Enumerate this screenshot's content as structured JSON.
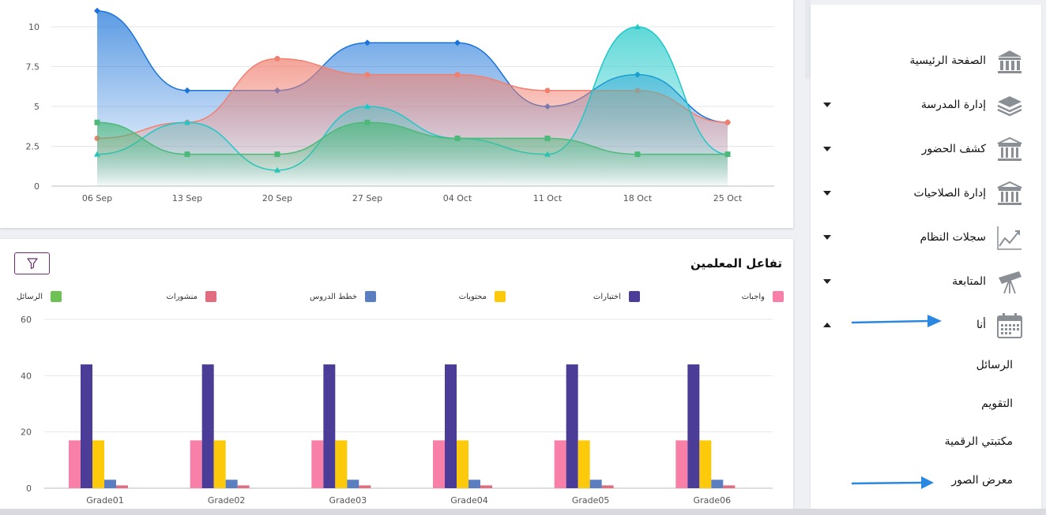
{
  "colors": {
    "blue": "#1a73d9",
    "salmon": "#f08070",
    "teal": "#1ec8c8",
    "green": "#4cb97a",
    "pink": "#f77fa8",
    "purple": "#4b3d97",
    "yellow": "#fdca0b",
    "slate": "#5a7ec0",
    "rose": "#e26d7e",
    "msg_green": "#6dc155",
    "annotation_arrow": "#2b88e0"
  },
  "chart_data": [
    {
      "type": "area",
      "title": "",
      "categories": [
        "06 Sep",
        "13 Sep",
        "20 Sep",
        "27 Sep",
        "04 Oct",
        "11 Oct",
        "18 Oct",
        "25 Oct"
      ],
      "ylim": [
        0,
        10
      ],
      "yticks": [
        "0",
        "2.5",
        "5",
        "7.5",
        "10"
      ],
      "series": [
        {
          "name": "blue",
          "marker": "diamond",
          "values": [
            11,
            6,
            6,
            9,
            9,
            5,
            7,
            4
          ]
        },
        {
          "name": "salmon",
          "marker": "circle",
          "values": [
            3,
            4,
            8,
            7,
            7,
            6,
            6,
            4
          ]
        },
        {
          "name": "teal",
          "marker": "triangle",
          "values": [
            2,
            4,
            1,
            5,
            3,
            2,
            10,
            2
          ]
        },
        {
          "name": "green",
          "marker": "square",
          "values": [
            4,
            2,
            2,
            4,
            3,
            3,
            2,
            2
          ]
        }
      ]
    },
    {
      "type": "bar",
      "title": "تفاعل المعلمين",
      "categories": [
        "Grade01",
        "Grade02",
        "Grade03",
        "Grade04",
        "Grade05",
        "Grade06"
      ],
      "ylim": [
        0,
        60
      ],
      "yticks": [
        "0",
        "20",
        "40",
        "60"
      ],
      "series": [
        {
          "name": "واجبات",
          "values": [
            17,
            17,
            17,
            17,
            17,
            17
          ]
        },
        {
          "name": "اختبارات",
          "values": [
            44,
            44,
            44,
            44,
            44,
            44
          ]
        },
        {
          "name": "محتويات",
          "values": [
            17,
            17,
            17,
            17,
            17,
            17
          ]
        },
        {
          "name": "خطط الدروس",
          "values": [
            3,
            3,
            3,
            3,
            3,
            3
          ]
        },
        {
          "name": "منشورات",
          "values": [
            1,
            1,
            1,
            1,
            1,
            1
          ]
        },
        {
          "name": "الرسائل",
          "values": [
            0,
            0,
            0,
            0,
            0,
            0
          ]
        }
      ]
    }
  ],
  "teacher_card": {
    "title": "تفاعل المعلمين",
    "legend": [
      "واجبات",
      "اختبارات",
      "محتويات",
      "خطط الدروس",
      "منشورات",
      "الرسائل"
    ]
  },
  "sidebar": {
    "items": [
      {
        "label": "الصفحة الرئيسية",
        "icon": "building-icon",
        "caret": "none"
      },
      {
        "label": "إدارة المدرسة",
        "icon": "layers-icon",
        "caret": "down"
      },
      {
        "label": "كشف الحضور",
        "icon": "institution-icon",
        "caret": "down"
      },
      {
        "label": "إدارة الصلاحيات",
        "icon": "institution-icon",
        "caret": "down"
      },
      {
        "label": "سجلات النظام",
        "icon": "line-chart-icon",
        "caret": "down"
      },
      {
        "label": "المتابعة",
        "icon": "telescope-icon",
        "caret": "down"
      },
      {
        "label": "أنا",
        "icon": "calendar-icon",
        "caret": "up"
      }
    ],
    "sub_items": [
      "الرسائل",
      "التقويم",
      "مكتبتي الرقمية",
      "معرض الصور"
    ]
  }
}
